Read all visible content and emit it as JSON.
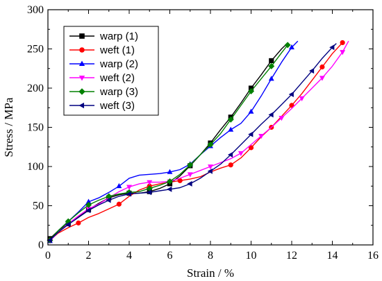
{
  "chart_data": {
    "type": "line",
    "xlabel": "Strain / %",
    "ylabel": "Stress / MPa",
    "xlim": [
      0,
      16
    ],
    "ylim": [
      0,
      300
    ],
    "xticks": [
      0,
      2,
      4,
      6,
      8,
      10,
      12,
      14,
      16
    ],
    "yticks": [
      0,
      50,
      100,
      150,
      200,
      250,
      300
    ],
    "grid": false,
    "legend_position": "top-left",
    "series": [
      {
        "name": "warp (1)",
        "color": "#000000",
        "marker": "square",
        "x": [
          0.1,
          0.5,
          1.0,
          1.5,
          2.0,
          2.5,
          3.0,
          3.5,
          4.0,
          4.5,
          5.0,
          5.5,
          6.0,
          6.5,
          7.0,
          7.5,
          8.0,
          8.5,
          9.0,
          9.5,
          10.0,
          10.5,
          11.0,
          11.5,
          11.7
        ],
        "y": [
          8,
          18,
          27,
          36,
          45,
          53,
          60,
          64,
          66,
          66,
          68,
          72,
          78,
          88,
          101,
          115,
          130,
          147,
          163,
          181,
          200,
          217,
          235,
          250,
          255
        ],
        "marker_indices": [
          0,
          2,
          4,
          6,
          8,
          10,
          12,
          14,
          16,
          18,
          20,
          22
        ]
      },
      {
        "name": "weft (1)",
        "color": "#ff0000",
        "marker": "circle",
        "x": [
          0.1,
          0.5,
          1.0,
          1.5,
          2.0,
          2.5,
          3.0,
          3.5,
          4.0,
          4.5,
          5.0,
          5.5,
          6.0,
          6.5,
          7.0,
          7.5,
          8.0,
          8.5,
          9.0,
          9.5,
          10.0,
          10.5,
          11.0,
          11.5,
          12.0,
          12.5,
          13.0,
          13.5,
          14.0,
          14.5
        ],
        "y": [
          6,
          15,
          22,
          28,
          35,
          40,
          46,
          52,
          62,
          70,
          75,
          78,
          80,
          82,
          84,
          87,
          93,
          98,
          102,
          111,
          124,
          138,
          150,
          164,
          178,
          193,
          210,
          227,
          244,
          258
        ],
        "marker_indices": [
          0,
          3,
          7,
          10,
          13,
          18,
          20,
          22,
          24,
          27,
          29
        ]
      },
      {
        "name": "warp (2)",
        "color": "#0000ff",
        "marker": "triangle-up",
        "x": [
          0.1,
          0.5,
          1.0,
          1.5,
          2.0,
          2.5,
          3.0,
          3.5,
          4.0,
          4.5,
          5.0,
          5.5,
          6.0,
          6.5,
          7.0,
          7.5,
          8.0,
          8.5,
          9.0,
          9.5,
          10.0,
          10.5,
          11.0,
          11.5,
          12.0,
          12.3
        ],
        "y": [
          5,
          18,
          30,
          42,
          55,
          60,
          67,
          75,
          85,
          89,
          90,
          91,
          93,
          96,
          103,
          115,
          126,
          137,
          147,
          155,
          170,
          190,
          212,
          233,
          252,
          260
        ],
        "marker_indices": [
          0,
          2,
          4,
          7,
          12,
          14,
          16,
          18,
          20,
          22,
          24
        ]
      },
      {
        "name": "weft (2)",
        "color": "#ff00ff",
        "marker": "triangle-down",
        "x": [
          0.1,
          0.5,
          1.0,
          1.5,
          2.0,
          2.5,
          3.0,
          3.5,
          4.0,
          4.5,
          5.0,
          5.5,
          6.0,
          6.5,
          7.0,
          7.5,
          8.0,
          8.5,
          9.0,
          9.5,
          10.0,
          10.5,
          11.0,
          11.5,
          12.0,
          12.5,
          13.0,
          13.5,
          14.0,
          14.5,
          14.8
        ],
        "y": [
          5,
          16,
          27,
          37,
          46,
          52,
          60,
          68,
          74,
          78,
          80,
          80,
          81,
          85,
          90,
          95,
          100,
          105,
          110,
          117,
          128,
          139,
          150,
          162,
          174,
          187,
          200,
          213,
          228,
          246,
          260
        ],
        "marker_indices": [
          0,
          2,
          4,
          6,
          8,
          10,
          12,
          14,
          16,
          19,
          21,
          23,
          25,
          27,
          29
        ]
      },
      {
        "name": "warp (3)",
        "color": "#008000",
        "marker": "diamond",
        "x": [
          0.1,
          0.5,
          1.0,
          1.5,
          2.0,
          2.5,
          3.0,
          3.5,
          4.0,
          4.5,
          5.0,
          5.5,
          6.0,
          6.5,
          7.0,
          7.5,
          8.0,
          8.5,
          9.0,
          9.5,
          10.0,
          10.5,
          11.0,
          11.5,
          11.8
        ],
        "y": [
          6,
          18,
          30,
          41,
          51,
          57,
          62,
          65,
          67,
          68,
          72,
          76,
          81,
          90,
          102,
          115,
          128,
          142,
          160,
          178,
          196,
          212,
          228,
          245,
          255
        ],
        "marker_indices": [
          0,
          2,
          4,
          6,
          8,
          10,
          12,
          14,
          16,
          18,
          20,
          22,
          24
        ]
      },
      {
        "name": "weft (3)",
        "color": "#000080",
        "marker": "triangle-left",
        "x": [
          0.1,
          0.5,
          1.0,
          1.5,
          2.0,
          2.5,
          3.0,
          3.5,
          4.0,
          4.5,
          5.0,
          5.5,
          6.0,
          6.5,
          7.0,
          7.5,
          8.0,
          8.5,
          9.0,
          9.5,
          10.0,
          10.5,
          11.0,
          11.5,
          12.0,
          12.5,
          13.0,
          13.5,
          14.0,
          14.2
        ],
        "y": [
          6,
          16,
          26,
          35,
          44,
          51,
          57,
          62,
          65,
          66,
          67,
          69,
          71,
          73,
          78,
          85,
          94,
          103,
          115,
          128,
          141,
          154,
          166,
          179,
          192,
          207,
          222,
          238,
          252,
          257
        ],
        "marker_indices": [
          0,
          2,
          4,
          6,
          8,
          10,
          12,
          14,
          16,
          18,
          20,
          22,
          24,
          26,
          28
        ]
      }
    ]
  }
}
